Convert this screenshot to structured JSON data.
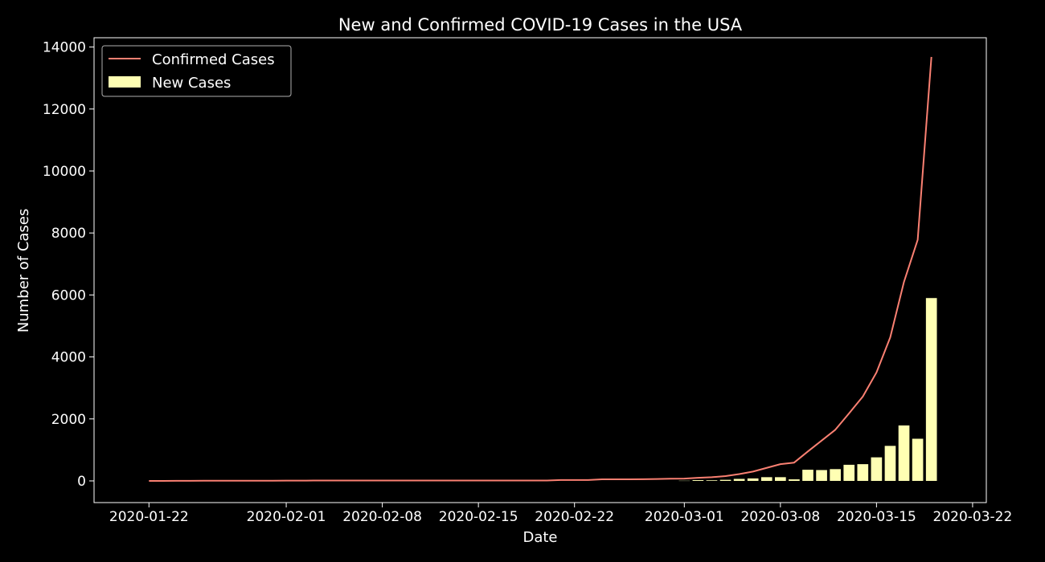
{
  "colors": {
    "background": "#000000",
    "axes": "#ffffff",
    "line": "#fa8072",
    "bars": "#ffffb3",
    "legend_border": "#b0b0b0"
  },
  "chart_data": {
    "type": "bar",
    "title": "New and Confirmed COVID-19 Cases in the USA",
    "xlabel": "Date",
    "ylabel": "Number of Cases",
    "x_axis_kind": "date",
    "xlim": [
      "2020-01-18",
      "2020-03-23"
    ],
    "ylim": [
      -700,
      14300
    ],
    "x_ticks": [
      "2020-01-22",
      "2020-02-01",
      "2020-02-08",
      "2020-02-15",
      "2020-02-22",
      "2020-03-01",
      "2020-03-08",
      "2020-03-15",
      "2020-03-22"
    ],
    "y_ticks": [
      0,
      2000,
      4000,
      6000,
      8000,
      10000,
      12000,
      14000
    ],
    "grid": false,
    "legend_position": "top-left",
    "series": [
      {
        "name": "Confirmed Cases",
        "type": "line",
        "color": "#fa8072",
        "x": [
          "2020-01-22",
          "2020-01-23",
          "2020-01-24",
          "2020-01-25",
          "2020-01-26",
          "2020-01-27",
          "2020-01-28",
          "2020-01-29",
          "2020-01-30",
          "2020-01-31",
          "2020-02-01",
          "2020-02-02",
          "2020-02-03",
          "2020-02-04",
          "2020-02-05",
          "2020-02-06",
          "2020-02-07",
          "2020-02-08",
          "2020-02-09",
          "2020-02-10",
          "2020-02-11",
          "2020-02-12",
          "2020-02-13",
          "2020-02-14",
          "2020-02-15",
          "2020-02-16",
          "2020-02-17",
          "2020-02-18",
          "2020-02-19",
          "2020-02-20",
          "2020-02-21",
          "2020-02-22",
          "2020-02-23",
          "2020-02-24",
          "2020-02-25",
          "2020-02-26",
          "2020-02-27",
          "2020-02-28",
          "2020-02-29",
          "2020-03-01",
          "2020-03-02",
          "2020-03-03",
          "2020-03-04",
          "2020-03-05",
          "2020-03-06",
          "2020-03-07",
          "2020-03-08",
          "2020-03-09",
          "2020-03-10",
          "2020-03-11",
          "2020-03-12",
          "2020-03-13",
          "2020-03-14",
          "2020-03-15",
          "2020-03-16",
          "2020-03-17",
          "2020-03-18",
          "2020-03-19"
        ],
        "values": [
          1,
          1,
          2,
          2,
          5,
          5,
          5,
          5,
          5,
          6,
          8,
          8,
          11,
          11,
          11,
          12,
          12,
          12,
          12,
          12,
          13,
          13,
          14,
          14,
          14,
          14,
          14,
          14,
          14,
          14,
          30,
          30,
          30,
          50,
          50,
          50,
          55,
          60,
          70,
          75,
          100,
          120,
          155,
          220,
          300,
          420,
          540,
          590,
          950,
          1300,
          1650,
          2180,
          2720,
          3500,
          4630,
          6420,
          7780,
          13680
        ]
      },
      {
        "name": "New Cases",
        "type": "bar",
        "color": "#ffffb3",
        "x": [
          "2020-03-01",
          "2020-03-02",
          "2020-03-03",
          "2020-03-04",
          "2020-03-05",
          "2020-03-06",
          "2020-03-07",
          "2020-03-08",
          "2020-03-09",
          "2020-03-10",
          "2020-03-11",
          "2020-03-12",
          "2020-03-13",
          "2020-03-14",
          "2020-03-15",
          "2020-03-16",
          "2020-03-17",
          "2020-03-18",
          "2020-03-19"
        ],
        "values": [
          5,
          25,
          20,
          35,
          65,
          80,
          120,
          120,
          50,
          360,
          350,
          380,
          520,
          540,
          760,
          1130,
          1790,
          1360,
          5900
        ]
      }
    ]
  }
}
